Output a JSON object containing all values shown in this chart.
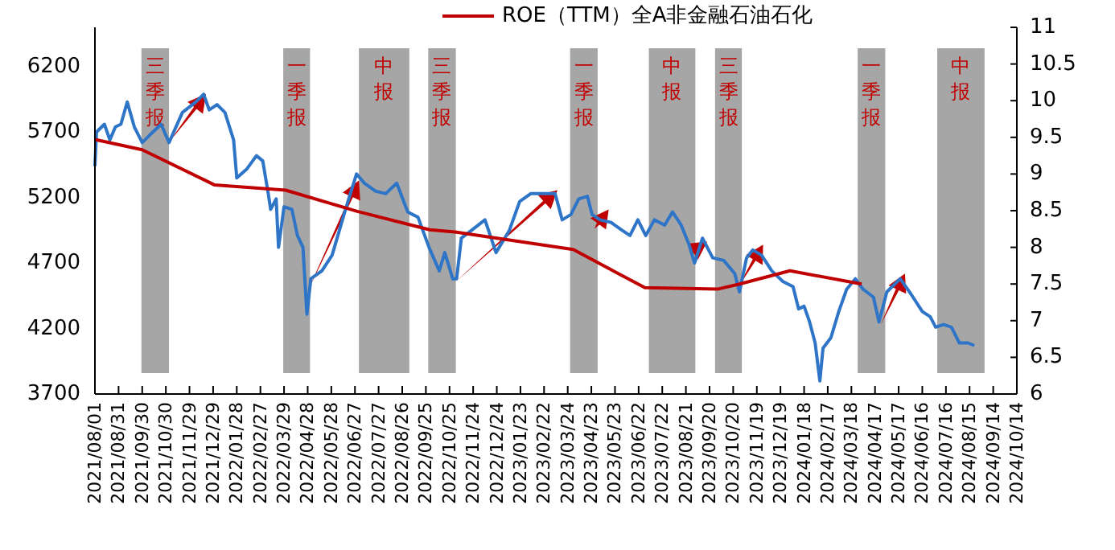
{
  "chart_data": {
    "type": "line",
    "legend": "top",
    "series": [
      {
        "color": "#2e75c8",
        "x": [
          "2021-08-01",
          "2021-08-03",
          "2021-08-13",
          "2021-08-20",
          "2021-08-27",
          "2021-09-03",
          "2021-09-11",
          "2021-09-20",
          "2021-09-30",
          "2021-10-10",
          "2021-10-24",
          "2021-11-03",
          "2021-11-20",
          "2021-12-07",
          "2021-12-17",
          "2021-12-24",
          "2022-01-03",
          "2022-01-13",
          "2022-01-24",
          "2022-01-28",
          "2022-02-10",
          "2022-02-22",
          "2022-03-02",
          "2022-03-09",
          "2022-03-12",
          "2022-03-19",
          "2022-03-22",
          "2022-03-29",
          "2022-04-08",
          "2022-04-15",
          "2022-04-22",
          "2022-04-27",
          "2022-05-02",
          "2022-05-16",
          "2022-05-29",
          "2022-06-15",
          "2022-06-29",
          "2022-07-09",
          "2022-07-23",
          "2022-08-05",
          "2022-08-19",
          "2022-09-02",
          "2022-09-15",
          "2022-09-29",
          "2022-10-12",
          "2022-10-19",
          "2022-10-29",
          "2022-11-03",
          "2022-11-09",
          "2022-11-22",
          "2022-12-09",
          "2022-12-23",
          "2023-01-09",
          "2023-01-22",
          "2023-02-05",
          "2023-02-19",
          "2023-03-08",
          "2023-03-17",
          "2023-03-28",
          "2023-04-07",
          "2023-04-18",
          "2023-04-24",
          "2023-05-04",
          "2023-05-18",
          "2023-06-01",
          "2023-06-11",
          "2023-06-21",
          "2023-07-01",
          "2023-07-12",
          "2023-07-25",
          "2023-08-04",
          "2023-08-15",
          "2023-08-25",
          "2023-09-01",
          "2023-09-11",
          "2023-09-24",
          "2023-10-08",
          "2023-10-22",
          "2023-10-28",
          "2023-11-06",
          "2023-11-14",
          "2023-11-25",
          "2023-12-08",
          "2023-12-22",
          "2024-01-04",
          "2024-01-11",
          "2024-01-18",
          "2024-01-25",
          "2024-02-01",
          "2024-02-07",
          "2024-02-11",
          "2024-02-21",
          "2024-03-02",
          "2024-03-12",
          "2024-03-23",
          "2024-04-02",
          "2024-04-15",
          "2024-04-22",
          "2024-05-02",
          "2024-05-19",
          "2024-06-02",
          "2024-06-16",
          "2024-06-26",
          "2024-07-03",
          "2024-07-13",
          "2024-07-23",
          "2024-08-02",
          "2024-08-13",
          "2024-08-21"
        ],
        "values": [
          5440,
          5700,
          5760,
          5640,
          5740,
          5760,
          5930,
          5740,
          5620,
          5680,
          5760,
          5620,
          5850,
          5930,
          5990,
          5870,
          5910,
          5850,
          5640,
          5350,
          5420,
          5520,
          5480,
          5230,
          5110,
          5190,
          4820,
          5130,
          5110,
          4910,
          4820,
          4310,
          4580,
          4640,
          4760,
          5110,
          5380,
          5310,
          5250,
          5230,
          5310,
          5090,
          5050,
          4820,
          4640,
          4780,
          4580,
          4580,
          4890,
          4950,
          5030,
          4780,
          4950,
          5170,
          5230,
          5230,
          5230,
          5030,
          5070,
          5190,
          5210,
          5070,
          5030,
          5010,
          4950,
          4910,
          5030,
          4910,
          5030,
          4990,
          5090,
          4990,
          4840,
          4700,
          4890,
          4740,
          4720,
          4620,
          4480,
          4740,
          4800,
          4760,
          4640,
          4560,
          4520,
          4350,
          4370,
          4250,
          4090,
          3800,
          4050,
          4130,
          4330,
          4500,
          4580,
          4500,
          4440,
          4250,
          4480,
          4580,
          4460,
          4330,
          4290,
          4210,
          4230,
          4210,
          4090,
          4090,
          4070
        ]
      },
      {
        "name": "ROE（TTM）全A非金融石油石化",
        "color": "#c00000",
        "axis": "y2",
        "x": [
          "2021-08-01",
          "2021-09-30",
          "2021-12-31",
          "2022-03-31",
          "2022-06-30",
          "2022-09-30",
          "2022-11-01",
          "2023-03-31",
          "2023-06-30",
          "2023-09-30",
          "2023-10-28",
          "2023-12-31",
          "2024-03-31"
        ],
        "values": [
          9.47,
          9.33,
          8.85,
          8.78,
          8.49,
          8.24,
          8.21,
          7.97,
          7.45,
          7.43,
          7.5,
          7.68,
          7.5
        ]
      }
    ],
    "xlim": [
      "2021-08-01",
      "2024-10-14"
    ],
    "xticks": [
      {
        "value": "2021-08-01",
        "label": "2021/08/01"
      },
      {
        "value": "2021-08-31",
        "label": "2021/08/31"
      },
      {
        "value": "2021-09-30",
        "label": "2021/09/30"
      },
      {
        "value": "2021-10-30",
        "label": "2021/10/30"
      },
      {
        "value": "2021-11-29",
        "label": "2021/11/29"
      },
      {
        "value": "2021-12-29",
        "label": "2021/12/29"
      },
      {
        "value": "2022-01-28",
        "label": "2022/01/28"
      },
      {
        "value": "2022-02-27",
        "label": "2022/02/27"
      },
      {
        "value": "2022-03-29",
        "label": "2022/03/29"
      },
      {
        "value": "2022-04-28",
        "label": "2022/04/28"
      },
      {
        "value": "2022-05-28",
        "label": "2022/05/28"
      },
      {
        "value": "2022-06-27",
        "label": "2022/06/27"
      },
      {
        "value": "2022-07-27",
        "label": "2022/07/27"
      },
      {
        "value": "2022-08-26",
        "label": "2022/08/26"
      },
      {
        "value": "2022-09-25",
        "label": "2022/09/25"
      },
      {
        "value": "2022-10-25",
        "label": "2022/10/25"
      },
      {
        "value": "2022-11-24",
        "label": "2022/11/24"
      },
      {
        "value": "2022-12-24",
        "label": "2022/12/24"
      },
      {
        "value": "2023-01-23",
        "label": "2023/01/23"
      },
      {
        "value": "2023-02-22",
        "label": "2023/02/22"
      },
      {
        "value": "2023-03-24",
        "label": "2023/03/24"
      },
      {
        "value": "2023-04-23",
        "label": "2023/04/23"
      },
      {
        "value": "2023-05-23",
        "label": "2023/05/23"
      },
      {
        "value": "2023-06-22",
        "label": "2023/06/22"
      },
      {
        "value": "2023-07-22",
        "label": "2023/07/22"
      },
      {
        "value": "2023-08-21",
        "label": "2023/08/21"
      },
      {
        "value": "2023-09-20",
        "label": "2023/09/20"
      },
      {
        "value": "2023-10-20",
        "label": "2023/10/20"
      },
      {
        "value": "2023-11-19",
        "label": "2023/11/19"
      },
      {
        "value": "2023-12-19",
        "label": "2023/12/19"
      },
      {
        "value": "2024-01-18",
        "label": "2024/01/18"
      },
      {
        "value": "2024-02-17",
        "label": "2024/02/17"
      },
      {
        "value": "2024-03-18",
        "label": "2024/03/18"
      },
      {
        "value": "2024-04-17",
        "label": "2024/04/17"
      },
      {
        "value": "2024-05-17",
        "label": "2024/05/17"
      },
      {
        "value": "2024-06-16",
        "label": "2024/06/16"
      },
      {
        "value": "2024-07-16",
        "label": "2024/07/16"
      },
      {
        "value": "2024-08-15",
        "label": "2024/08/15"
      },
      {
        "value": "2024-09-14",
        "label": "2024/09/14"
      },
      {
        "value": "2024-10-14",
        "label": "2024/10/14"
      }
    ],
    "ylim": [
      3700,
      6500
    ],
    "yticks": [
      3700,
      4200,
      4700,
      5200,
      5700,
      6200
    ],
    "y2lim": [
      6,
      11
    ],
    "y2ticks": [
      6,
      6.5,
      7,
      7.5,
      8,
      8.5,
      9,
      9.5,
      10,
      10.5,
      11
    ],
    "bands": [
      {
        "axis": "x",
        "from": "2021-09-29",
        "to": "2021-11-03",
        "label": "三季报",
        "color": "#a6a6a6"
      },
      {
        "axis": "x",
        "from": "2022-03-28",
        "to": "2022-05-01",
        "label": "一季报",
        "color": "#a6a6a6"
      },
      {
        "axis": "x",
        "from": "2022-07-02",
        "to": "2022-09-04",
        "label": "中报",
        "color": "#a6a6a6"
      },
      {
        "axis": "x",
        "from": "2022-09-28",
        "to": "2022-11-02",
        "label": "三季报",
        "color": "#a6a6a6"
      },
      {
        "axis": "x",
        "from": "2023-03-27",
        "to": "2023-05-01",
        "label": "一季报",
        "color": "#a6a6a6"
      },
      {
        "axis": "x",
        "from": "2023-07-05",
        "to": "2023-09-02",
        "label": "中报",
        "color": "#a6a6a6"
      },
      {
        "axis": "x",
        "from": "2023-09-27",
        "to": "2023-10-31",
        "label": "三季报",
        "color": "#a6a6a6"
      },
      {
        "axis": "x",
        "from": "2024-03-26",
        "to": "2024-04-30",
        "label": "一季报",
        "color": "#a6a6a6"
      },
      {
        "axis": "x",
        "from": "2024-07-05",
        "to": "2024-09-03",
        "label": "中报",
        "color": "#a6a6a6"
      }
    ]
  }
}
